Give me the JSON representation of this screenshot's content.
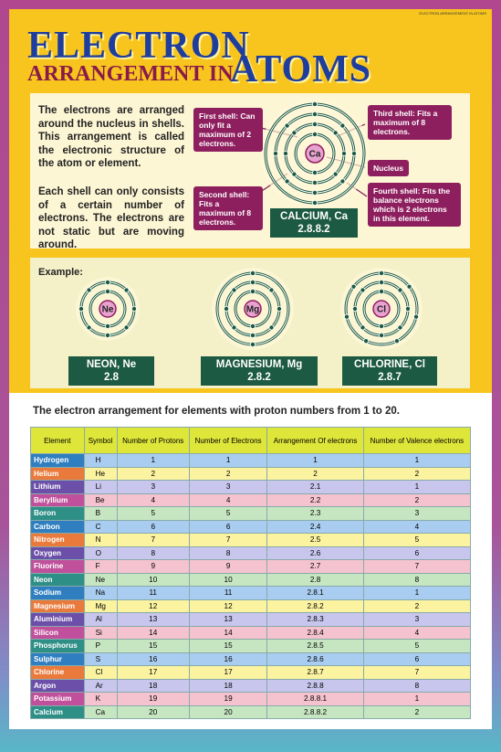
{
  "header": {
    "tag": "ELECTRON ARRANGEMENT IN ATOMS",
    "title_line1": "ELECTRON",
    "title_line2": "ARRANGEMENT IN",
    "title_line3": "ATOMS"
  },
  "intro": {
    "paragraphs": [
      "The electrons are arranged around the nucleus in shells. This arrangement is called the electronic structure of the atom or element.",
      "Each shell can only consists of a certain number of electrons. The electrons are not static but are moving around."
    ]
  },
  "diagram": {
    "first_shell": "First shell: Can only fit a maximum of 2 electrons.",
    "second_shell": "Second shell: Fits a maximum of 8 electrons.",
    "third_shell": "Third shell: Fits a maximum of 8 electrons.",
    "fourth_shell": "Fourth shell: Fits the balance electrons which is 2 electrons in this element.",
    "nucleus": "Nucleus",
    "symbol": "Ca",
    "name": "CALCIUM, Ca",
    "arrangement": "2.8.8.2"
  },
  "example": {
    "label": "Example:",
    "atoms": [
      {
        "symbol": "Ne",
        "name": "NEON, Ne",
        "arrangement": "2.8"
      },
      {
        "symbol": "Mg",
        "name": "MAGNESIUM, Mg",
        "arrangement": "2.8.2"
      },
      {
        "symbol": "Cl",
        "name": "CHLORINE, Cl",
        "arrangement": "2.8.7"
      }
    ]
  },
  "table": {
    "title": "The electron arrangement for elements with proton numbers from 1 to 20.",
    "headers": [
      "Element",
      "Symbol",
      "Number of Protons",
      "Number of Electrons",
      "Arrangement Of electrons",
      "Number of Valence electrons"
    ],
    "rows": [
      [
        "Hydrogen",
        "H",
        1,
        1,
        "1",
        1
      ],
      [
        "Helium",
        "He",
        2,
        2,
        "2",
        2
      ],
      [
        "Lithium",
        "Li",
        3,
        3,
        "2.1",
        1
      ],
      [
        "Beryllium",
        "Be",
        4,
        4,
        "2.2",
        2
      ],
      [
        "Boron",
        "B",
        5,
        5,
        "2.3",
        3
      ],
      [
        "Carbon",
        "C",
        6,
        6,
        "2.4",
        4
      ],
      [
        "Nitrogen",
        "N",
        7,
        7,
        "2.5",
        5
      ],
      [
        "Oxygen",
        "O",
        8,
        8,
        "2.6",
        6
      ],
      [
        "Fluorine",
        "F",
        9,
        9,
        "2.7",
        7
      ],
      [
        "Neon",
        "Ne",
        10,
        10,
        "2.8",
        8
      ],
      [
        "Sodium",
        "Na",
        11,
        11,
        "2.8.1",
        1
      ],
      [
        "Magnesium",
        "Mg",
        12,
        12,
        "2.8.2",
        2
      ],
      [
        "Aluminium",
        "Al",
        13,
        13,
        "2.8.3",
        3
      ],
      [
        "Silicon",
        "Si",
        14,
        14,
        "2.8.4",
        4
      ],
      [
        "Phosphorus",
        "P",
        15,
        15,
        "2.8.5",
        5
      ],
      [
        "Sulphur",
        "S",
        16,
        16,
        "2.8.6",
        6
      ],
      [
        "Chlorine",
        "Cl",
        17,
        17,
        "2.8.7",
        7
      ],
      [
        "Argon",
        "Ar",
        18,
        18,
        "2.8.8",
        8
      ],
      [
        "Potassium",
        "K",
        19,
        19,
        "2.8.8.1",
        1
      ],
      [
        "Calcium",
        "Ca",
        20,
        20,
        "2.8.8.2",
        2
      ]
    ]
  }
}
